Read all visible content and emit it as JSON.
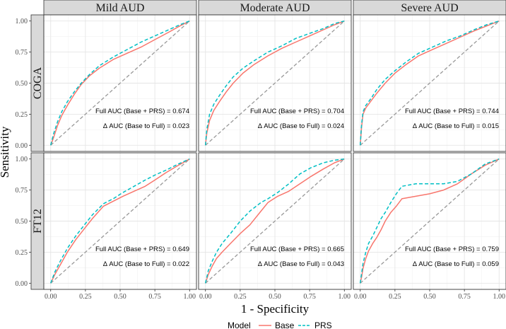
{
  "chart_data": {
    "type": "line",
    "xlabel": "1 - Specificity",
    "ylabel": "Sensitivity",
    "xlim": [
      0,
      1
    ],
    "ylim": [
      0,
      1
    ],
    "xticks": [
      "0.00",
      "0.25",
      "0.50",
      "0.75",
      "1.00"
    ],
    "yticks": [
      "0.00",
      "0.25",
      "0.50",
      "0.75",
      "1.00"
    ],
    "grid": true,
    "legend": {
      "title": "Model",
      "position": "bottom",
      "items": [
        {
          "label": "Base",
          "color": "#F8766D",
          "dash": "solid"
        },
        {
          "label": "PRS",
          "color": "#00BFC4",
          "dash": "dashed"
        }
      ]
    },
    "reference_line": {
      "color": "#999999",
      "dash": "dashed",
      "points": [
        [
          0,
          0
        ],
        [
          1,
          1
        ]
      ]
    },
    "columns": [
      "Mild AUD",
      "Moderate AUD",
      "Severe AUD"
    ],
    "rows": [
      "COGA",
      "FT12"
    ],
    "panels": [
      {
        "row": "COGA",
        "column": "Mild AUD",
        "full_auc_label": "Full AUC (Base + PRS) = 0.674",
        "delta_auc_label": "Δ AUC (Base to Full) = 0.023",
        "series": [
          {
            "name": "Base",
            "points": [
              [
                0,
                0
              ],
              [
                0.02,
                0.06
              ],
              [
                0.05,
                0.16
              ],
              [
                0.08,
                0.24
              ],
              [
                0.12,
                0.32
              ],
              [
                0.17,
                0.41
              ],
              [
                0.22,
                0.49
              ],
              [
                0.28,
                0.56
              ],
              [
                0.35,
                0.62
              ],
              [
                0.45,
                0.69
              ],
              [
                0.55,
                0.74
              ],
              [
                0.65,
                0.79
              ],
              [
                0.75,
                0.85
              ],
              [
                0.85,
                0.91
              ],
              [
                0.93,
                0.96
              ],
              [
                1,
                1
              ]
            ]
          },
          {
            "name": "PRS",
            "points": [
              [
                0,
                0
              ],
              [
                0.02,
                0.09
              ],
              [
                0.05,
                0.19
              ],
              [
                0.08,
                0.27
              ],
              [
                0.12,
                0.35
              ],
              [
                0.17,
                0.43
              ],
              [
                0.22,
                0.5
              ],
              [
                0.28,
                0.57
              ],
              [
                0.35,
                0.64
              ],
              [
                0.45,
                0.71
              ],
              [
                0.55,
                0.77
              ],
              [
                0.65,
                0.83
              ],
              [
                0.75,
                0.88
              ],
              [
                0.85,
                0.93
              ],
              [
                0.93,
                0.97
              ],
              [
                1,
                1
              ]
            ]
          }
        ]
      },
      {
        "row": "COGA",
        "column": "Moderate AUD",
        "full_auc_label": "Full AUC (Base + PRS) = 0.704",
        "delta_auc_label": "Δ AUC (Base to Full) = 0.024",
        "series": [
          {
            "name": "Base",
            "points": [
              [
                0,
                0
              ],
              [
                0.01,
                0.1
              ],
              [
                0.03,
                0.2
              ],
              [
                0.06,
                0.28
              ],
              [
                0.1,
                0.35
              ],
              [
                0.15,
                0.43
              ],
              [
                0.2,
                0.5
              ],
              [
                0.27,
                0.58
              ],
              [
                0.35,
                0.65
              ],
              [
                0.45,
                0.72
              ],
              [
                0.55,
                0.78
              ],
              [
                0.65,
                0.83
              ],
              [
                0.75,
                0.88
              ],
              [
                0.85,
                0.93
              ],
              [
                0.93,
                0.97
              ],
              [
                1,
                1
              ]
            ]
          },
          {
            "name": "PRS",
            "points": [
              [
                0,
                0
              ],
              [
                0.01,
                0.13
              ],
              [
                0.03,
                0.25
              ],
              [
                0.06,
                0.33
              ],
              [
                0.1,
                0.4
              ],
              [
                0.15,
                0.48
              ],
              [
                0.2,
                0.55
              ],
              [
                0.27,
                0.62
              ],
              [
                0.35,
                0.68
              ],
              [
                0.45,
                0.75
              ],
              [
                0.55,
                0.8
              ],
              [
                0.65,
                0.86
              ],
              [
                0.75,
                0.9
              ],
              [
                0.85,
                0.94
              ],
              [
                0.93,
                0.98
              ],
              [
                1,
                1
              ]
            ]
          }
        ]
      },
      {
        "row": "COGA",
        "column": "Severe AUD",
        "full_auc_label": "Full AUC (Base + PRS) = 0.744",
        "delta_auc_label": "Δ AUC (Base to Full) = 0.015",
        "series": [
          {
            "name": "Base",
            "points": [
              [
                0,
                0
              ],
              [
                0.01,
                0.15
              ],
              [
                0.02,
                0.25
              ],
              [
                0.04,
                0.3
              ],
              [
                0.08,
                0.36
              ],
              [
                0.12,
                0.42
              ],
              [
                0.18,
                0.5
              ],
              [
                0.25,
                0.58
              ],
              [
                0.33,
                0.65
              ],
              [
                0.42,
                0.72
              ],
              [
                0.52,
                0.77
              ],
              [
                0.62,
                0.82
              ],
              [
                0.72,
                0.87
              ],
              [
                0.82,
                0.92
              ],
              [
                0.91,
                0.96
              ],
              [
                1,
                1
              ]
            ]
          },
          {
            "name": "PRS",
            "points": [
              [
                0,
                0
              ],
              [
                0.01,
                0.17
              ],
              [
                0.02,
                0.27
              ],
              [
                0.04,
                0.32
              ],
              [
                0.08,
                0.38
              ],
              [
                0.12,
                0.45
              ],
              [
                0.18,
                0.53
              ],
              [
                0.25,
                0.6
              ],
              [
                0.33,
                0.67
              ],
              [
                0.42,
                0.74
              ],
              [
                0.52,
                0.79
              ],
              [
                0.62,
                0.84
              ],
              [
                0.72,
                0.88
              ],
              [
                0.82,
                0.93
              ],
              [
                0.91,
                0.97
              ],
              [
                1,
                1
              ]
            ]
          }
        ]
      },
      {
        "row": "FT12",
        "column": "Mild AUD",
        "full_auc_label": "Full AUC (Base + PRS) = 0.649",
        "delta_auc_label": "Δ AUC (Base to Full) = 0.022",
        "series": [
          {
            "name": "Base",
            "points": [
              [
                0,
                0
              ],
              [
                0.03,
                0.07
              ],
              [
                0.07,
                0.15
              ],
              [
                0.12,
                0.25
              ],
              [
                0.18,
                0.35
              ],
              [
                0.25,
                0.45
              ],
              [
                0.3,
                0.52
              ],
              [
                0.38,
                0.62
              ],
              [
                0.45,
                0.66
              ],
              [
                0.52,
                0.7
              ],
              [
                0.6,
                0.74
              ],
              [
                0.68,
                0.78
              ],
              [
                0.75,
                0.83
              ],
              [
                0.83,
                0.89
              ],
              [
                0.92,
                0.95
              ],
              [
                1,
                1
              ]
            ]
          },
          {
            "name": "PRS",
            "points": [
              [
                0,
                0
              ],
              [
                0.03,
                0.09
              ],
              [
                0.07,
                0.18
              ],
              [
                0.12,
                0.28
              ],
              [
                0.18,
                0.38
              ],
              [
                0.25,
                0.48
              ],
              [
                0.3,
                0.55
              ],
              [
                0.38,
                0.64
              ],
              [
                0.45,
                0.68
              ],
              [
                0.52,
                0.73
              ],
              [
                0.6,
                0.78
              ],
              [
                0.68,
                0.83
              ],
              [
                0.75,
                0.87
              ],
              [
                0.83,
                0.91
              ],
              [
                0.92,
                0.96
              ],
              [
                1,
                1
              ]
            ]
          }
        ]
      },
      {
        "row": "FT12",
        "column": "Moderate AUD",
        "full_auc_label": "Full AUC (Base + PRS) = 0.665",
        "delta_auc_label": "Δ AUC (Base to Full) = 0.043",
        "series": [
          {
            "name": "Base",
            "points": [
              [
                0,
                0
              ],
              [
                0.02,
                0.07
              ],
              [
                0.05,
                0.14
              ],
              [
                0.08,
                0.2
              ],
              [
                0.12,
                0.25
              ],
              [
                0.18,
                0.32
              ],
              [
                0.25,
                0.4
              ],
              [
                0.32,
                0.47
              ],
              [
                0.4,
                0.58
              ],
              [
                0.45,
                0.65
              ],
              [
                0.52,
                0.7
              ],
              [
                0.6,
                0.74
              ],
              [
                0.68,
                0.8
              ],
              [
                0.76,
                0.86
              ],
              [
                0.85,
                0.92
              ],
              [
                0.93,
                0.97
              ],
              [
                1,
                1
              ]
            ]
          },
          {
            "name": "PRS",
            "points": [
              [
                0,
                0
              ],
              [
                0.02,
                0.1
              ],
              [
                0.05,
                0.18
              ],
              [
                0.08,
                0.25
              ],
              [
                0.12,
                0.32
              ],
              [
                0.18,
                0.4
              ],
              [
                0.25,
                0.5
              ],
              [
                0.32,
                0.58
              ],
              [
                0.4,
                0.65
              ],
              [
                0.45,
                0.68
              ],
              [
                0.52,
                0.73
              ],
              [
                0.6,
                0.8
              ],
              [
                0.68,
                0.88
              ],
              [
                0.76,
                0.93
              ],
              [
                0.85,
                0.97
              ],
              [
                0.93,
                0.99
              ],
              [
                1,
                1
              ]
            ]
          }
        ]
      },
      {
        "row": "FT12",
        "column": "Severe AUD",
        "full_auc_label": "Full AUC (Base + PRS) = 0.759",
        "delta_auc_label": "Δ AUC (Base to Full) = 0.059",
        "series": [
          {
            "name": "Base",
            "points": [
              [
                0,
                0
              ],
              [
                0.01,
                0.05
              ],
              [
                0.02,
                0.12
              ],
              [
                0.04,
                0.2
              ],
              [
                0.06,
                0.26
              ],
              [
                0.09,
                0.32
              ],
              [
                0.12,
                0.37
              ],
              [
                0.15,
                0.43
              ],
              [
                0.18,
                0.5
              ],
              [
                0.22,
                0.57
              ],
              [
                0.26,
                0.62
              ],
              [
                0.3,
                0.68
              ],
              [
                0.4,
                0.7
              ],
              [
                0.5,
                0.72
              ],
              [
                0.6,
                0.75
              ],
              [
                0.7,
                0.8
              ],
              [
                0.8,
                0.88
              ],
              [
                0.9,
                0.95
              ],
              [
                1,
                1
              ]
            ]
          },
          {
            "name": "PRS",
            "points": [
              [
                0,
                0
              ],
              [
                0.01,
                0.08
              ],
              [
                0.02,
                0.16
              ],
              [
                0.04,
                0.25
              ],
              [
                0.06,
                0.32
              ],
              [
                0.09,
                0.38
              ],
              [
                0.12,
                0.45
              ],
              [
                0.15,
                0.52
              ],
              [
                0.18,
                0.57
              ],
              [
                0.22,
                0.65
              ],
              [
                0.26,
                0.72
              ],
              [
                0.3,
                0.78
              ],
              [
                0.4,
                0.8
              ],
              [
                0.5,
                0.8
              ],
              [
                0.6,
                0.8
              ],
              [
                0.7,
                0.82
              ],
              [
                0.8,
                0.88
              ],
              [
                0.9,
                0.96
              ],
              [
                1,
                1
              ]
            ]
          }
        ]
      }
    ]
  }
}
